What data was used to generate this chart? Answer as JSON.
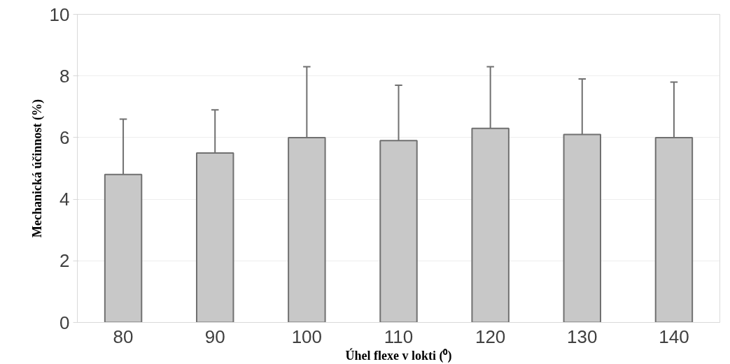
{
  "chart_data": {
    "type": "bar",
    "xlabel": "Úhel flexe v lokti (⁰)",
    "ylabel": "Mechanická účinnost (%)",
    "categories": [
      "80",
      "90",
      "100",
      "110",
      "120",
      "130",
      "140"
    ],
    "values": [
      4.8,
      5.5,
      6.0,
      5.9,
      6.3,
      6.1,
      6.0
    ],
    "errors": [
      [
        4.8,
        6.6
      ],
      [
        5.5,
        6.9
      ],
      [
        6.0,
        8.3
      ],
      [
        5.9,
        7.7
      ],
      [
        6.3,
        8.3
      ],
      [
        6.1,
        7.9
      ],
      [
        6.0,
        7.8
      ]
    ],
    "color": "#c8c8c8",
    "ylim": [
      0,
      10
    ],
    "yticks": [
      0,
      2,
      4,
      6,
      8,
      10
    ],
    "grid": "y"
  }
}
